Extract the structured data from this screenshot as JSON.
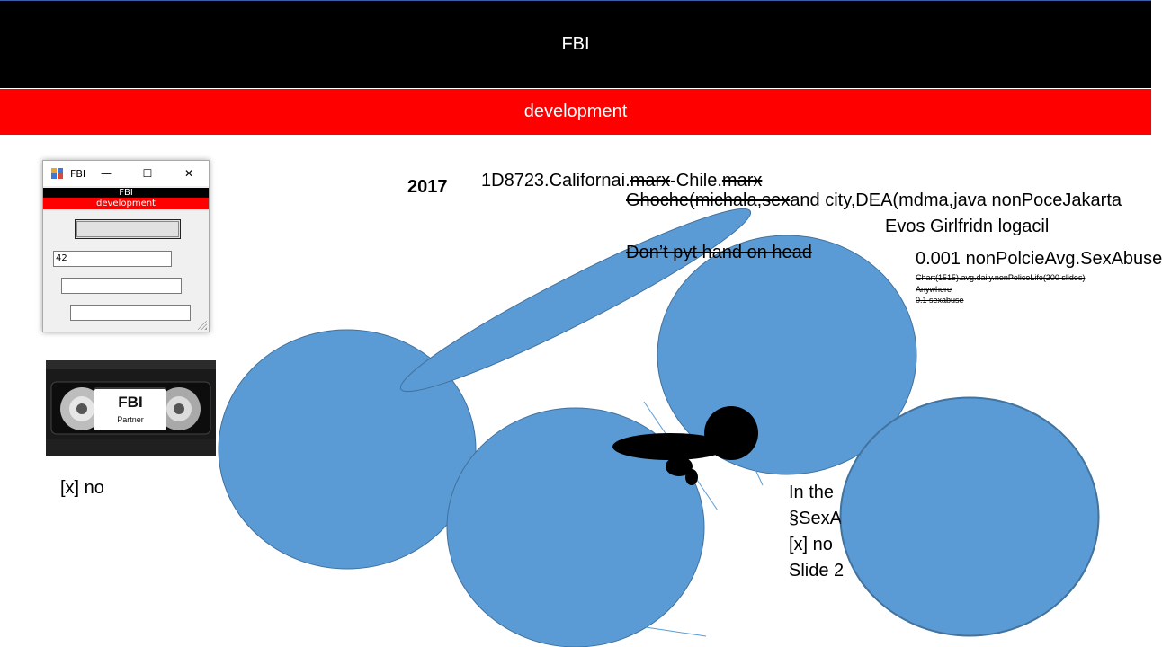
{
  "header": {
    "title": "FBI",
    "subtitle": "development"
  },
  "window": {
    "title": "FBI",
    "controls": {
      "minimize": "—",
      "maximize": "☐",
      "close": "✕"
    },
    "bar_title": "FBI",
    "bar_subtitle": "development",
    "textbox_value": "42"
  },
  "vhs": {
    "label_title": "FBI",
    "label_subtitle": "Partner"
  },
  "left_note": "[x] no",
  "slide": {
    "year": "2017",
    "line1": {
      "a": "1D8723.Californai.",
      "b": "marx",
      "c": "-Chile.",
      "d": "marx"
    },
    "line2": {
      "a": "Ghoche(michala,sex",
      "b": "and city,DEA(mdma,java nonPoceJakarta"
    },
    "line3": "Evos Girlfridn logacil",
    "line4": "Don’t pyt hand on head",
    "line5": "0.001 nonPolcieAvg.SexAbuse",
    "small1": "Chart(1515).avg.daily.nonPoliceLife(200 slides)",
    "small2": "Anywhere",
    "small3": "0.1 sexabuse",
    "bottom": [
      "In the",
      "§SexA",
      "[x] no",
      "Slide 2"
    ]
  },
  "colors": {
    "circle_fill": "#5b9bd5",
    "circle_stroke": "#41719c",
    "header_black": "#000000",
    "header_red": "#ff0000"
  }
}
